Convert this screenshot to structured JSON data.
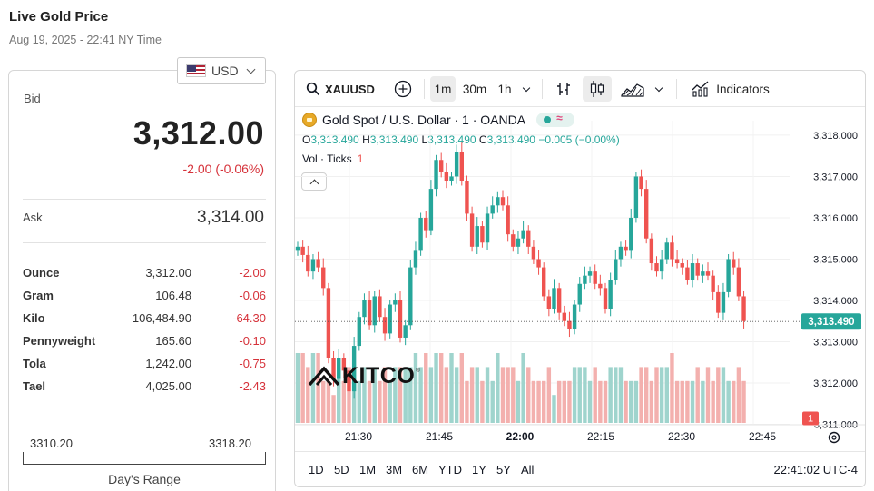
{
  "page": {
    "title": "Live Gold Price",
    "subtitle": "Aug 19, 2025 - 22:41 NY Time"
  },
  "currency": {
    "selected": "USD",
    "flag_icon": "us-flag-icon"
  },
  "quote": {
    "bid_label": "Bid",
    "bid_value": "3,312.00",
    "bid_change": "-2.00 (-0.06%)",
    "ask_label": "Ask",
    "ask_value": "3,314.00"
  },
  "units": [
    {
      "name": "Ounce",
      "price": "3,312.00",
      "change": "-2.00"
    },
    {
      "name": "Gram",
      "price": "106.48",
      "change": "-0.06"
    },
    {
      "name": "Kilo",
      "price": "106,484.90",
      "change": "-64.30"
    },
    {
      "name": "Pennyweight",
      "price": "165.60",
      "change": "-0.10"
    },
    {
      "name": "Tola",
      "price": "1,242.00",
      "change": "-0.75"
    },
    {
      "name": "Tael",
      "price": "4,025.00",
      "change": "-2.43"
    }
  ],
  "days_range": {
    "low": "3310.20",
    "high": "3318.20",
    "label": "Day's Range"
  },
  "toolbar": {
    "symbol": "XAUUSD",
    "intervals": [
      "1m",
      "30m",
      "1h"
    ],
    "active_interval": "1m",
    "indicators_label": "Indicators"
  },
  "legend": {
    "symbol_title": "Gold Spot / U.S. Dollar · 1 · OANDA",
    "o_label": "O",
    "o_value": "3,313.490",
    "h_label": "H",
    "h_value": "3,313.490",
    "l_label": "L",
    "l_value": "3,313.490",
    "c_label": "C",
    "c_value": "3,313.490",
    "change": "−0.005 (−0.00%)",
    "vol_label": "Vol · Ticks",
    "vol_value": "1"
  },
  "brand": {
    "logo_text": "KITCO"
  },
  "ranges": [
    "1D",
    "5D",
    "1M",
    "3M",
    "6M",
    "YTD",
    "1Y",
    "5Y",
    "All"
  ],
  "clock": "22:41:02 UTC-4",
  "colors": {
    "up": "#26a69a",
    "down": "#ef5350",
    "up_vol": "#9fd4cd",
    "down_vol": "#f3b0ae",
    "price_tag": "#26a69a"
  },
  "chart_data": {
    "type": "candlestick",
    "symbol": "XAUUSD",
    "interval": "1m",
    "y_ticks": [
      "3,318.000",
      "3,317.000",
      "3,316.000",
      "3,315.000",
      "3,314.000",
      "3,313.000",
      "3,312.000",
      "3,311.000"
    ],
    "x_ticks": [
      "21:30",
      "21:45",
      "22:00",
      "22:15",
      "22:30",
      "22:45"
    ],
    "x_ticks_bold": [
      "22:00"
    ],
    "ylim": [
      3310.99,
      3318.35
    ],
    "last_price": "3,313.490",
    "last_volume": "1",
    "close_series": [
      3315.3,
      3315.1,
      3314.7,
      3315.0,
      3314.8,
      3314.3,
      3312.6,
      3312.1,
      3312.6,
      3312.3,
      3311.8,
      3312.9,
      3313.6,
      3314.0,
      3313.4,
      3314.1,
      3313.6,
      3313.2,
      3313.9,
      3314.0,
      3313.1,
      3313.4,
      3314.8,
      3315.2,
      3316.0,
      3315.7,
      3316.7,
      3317.4,
      3317.1,
      3316.9,
      3317.0,
      3317.6,
      3316.9,
      3316.1,
      3315.3,
      3315.8,
      3315.4,
      3316.1,
      3316.3,
      3316.5,
      3316.3,
      3315.6,
      3315.3,
      3315.5,
      3315.7,
      3315.3,
      3315.0,
      3314.8,
      3314.1,
      3313.8,
      3314.3,
      3313.7,
      3313.5,
      3313.3,
      3313.9,
      3314.4,
      3314.6,
      3314.7,
      3314.4,
      3314.3,
      3313.8,
      3314.5,
      3315.0,
      3315.3,
      3315.2,
      3316.0,
      3317.0,
      3316.7,
      3315.5,
      3314.9,
      3314.7,
      3315.0,
      3315.4,
      3315.0,
      3314.9,
      3314.8,
      3314.5,
      3314.9,
      3314.6,
      3314.7,
      3314.6,
      3314.2,
      3313.7,
      3314.2,
      3315.0,
      3314.8,
      3314.1,
      3313.5
    ],
    "volume_series": [
      5,
      5,
      4,
      5,
      5,
      3,
      3,
      2,
      4,
      3,
      4,
      4,
      3,
      4,
      3,
      4,
      3,
      4,
      3,
      4,
      4,
      4,
      4,
      5,
      4,
      5,
      4,
      5,
      5,
      4,
      5,
      4,
      5,
      3,
      4,
      4,
      3,
      4,
      3,
      5,
      4,
      4,
      4,
      3,
      5,
      4,
      3,
      3,
      3,
      4,
      2,
      3,
      3,
      3,
      4,
      4,
      4,
      3,
      4,
      3,
      3,
      4,
      4,
      4,
      3,
      3,
      3,
      4,
      4,
      3,
      4,
      4,
      4,
      5,
      3,
      3,
      3,
      3,
      4,
      3,
      4,
      3,
      4,
      4,
      3,
      3,
      4,
      3
    ],
    "volume_max": 5
  }
}
